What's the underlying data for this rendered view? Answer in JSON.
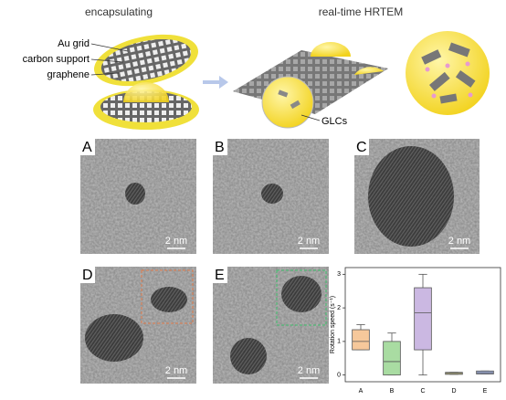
{
  "schematic": {
    "left_title": "encapsulating",
    "right_title": "real-time HRTEM",
    "labels": [
      "Au grid",
      "carbon support",
      "graphene"
    ],
    "glc_label": "GLCs"
  },
  "panels": [
    {
      "label": "A",
      "scale": "2 nm"
    },
    {
      "label": "B",
      "scale": "2 nm"
    },
    {
      "label": "C",
      "scale": "2 nm"
    },
    {
      "label": "D",
      "scale": "2 nm"
    },
    {
      "label": "E",
      "scale": "2 nm"
    }
  ],
  "chart_data": {
    "type": "box",
    "y_label": "Rotation speed (s⁻¹)",
    "categories": [
      "A",
      "B",
      "C",
      "D",
      "E"
    ],
    "boxes": [
      {
        "min": 0.75,
        "q1": 0.75,
        "median": 1.0,
        "q3": 1.35,
        "max": 1.5,
        "color": "#f6c89b"
      },
      {
        "min": 0.0,
        "q1": 0.0,
        "median": 0.4,
        "q3": 1.0,
        "max": 1.25,
        "color": "#a9dca2"
      },
      {
        "min": 0.0,
        "q1": 0.75,
        "median": 1.85,
        "q3": 2.6,
        "max": 3.0,
        "color": "#cbb8e2"
      },
      {
        "min": 0.02,
        "q1": 0.02,
        "median": 0.05,
        "q3": 0.08,
        "max": 0.08,
        "color": "#f3ee9c"
      },
      {
        "min": 0.03,
        "q1": 0.03,
        "median": 0.07,
        "q3": 0.12,
        "max": 0.12,
        "color": "#a9b9ea"
      }
    ],
    "ylim": [
      -0.2,
      3.2
    ],
    "yticks": [
      0,
      1,
      2,
      3
    ]
  }
}
